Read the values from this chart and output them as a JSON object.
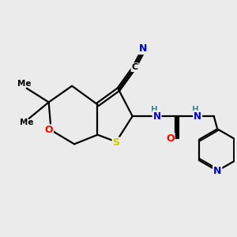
{
  "background_color": "#ebebeb",
  "atom_colors": {
    "N": "#0000cc",
    "S": "#cccc00",
    "O": "#ff0000",
    "C": "#000000",
    "H_label": "#3d8c8c"
  },
  "bond_color": "#000000",
  "bond_width": 1.6,
  "xlim": [
    0,
    10
  ],
  "ylim": [
    0,
    10
  ]
}
